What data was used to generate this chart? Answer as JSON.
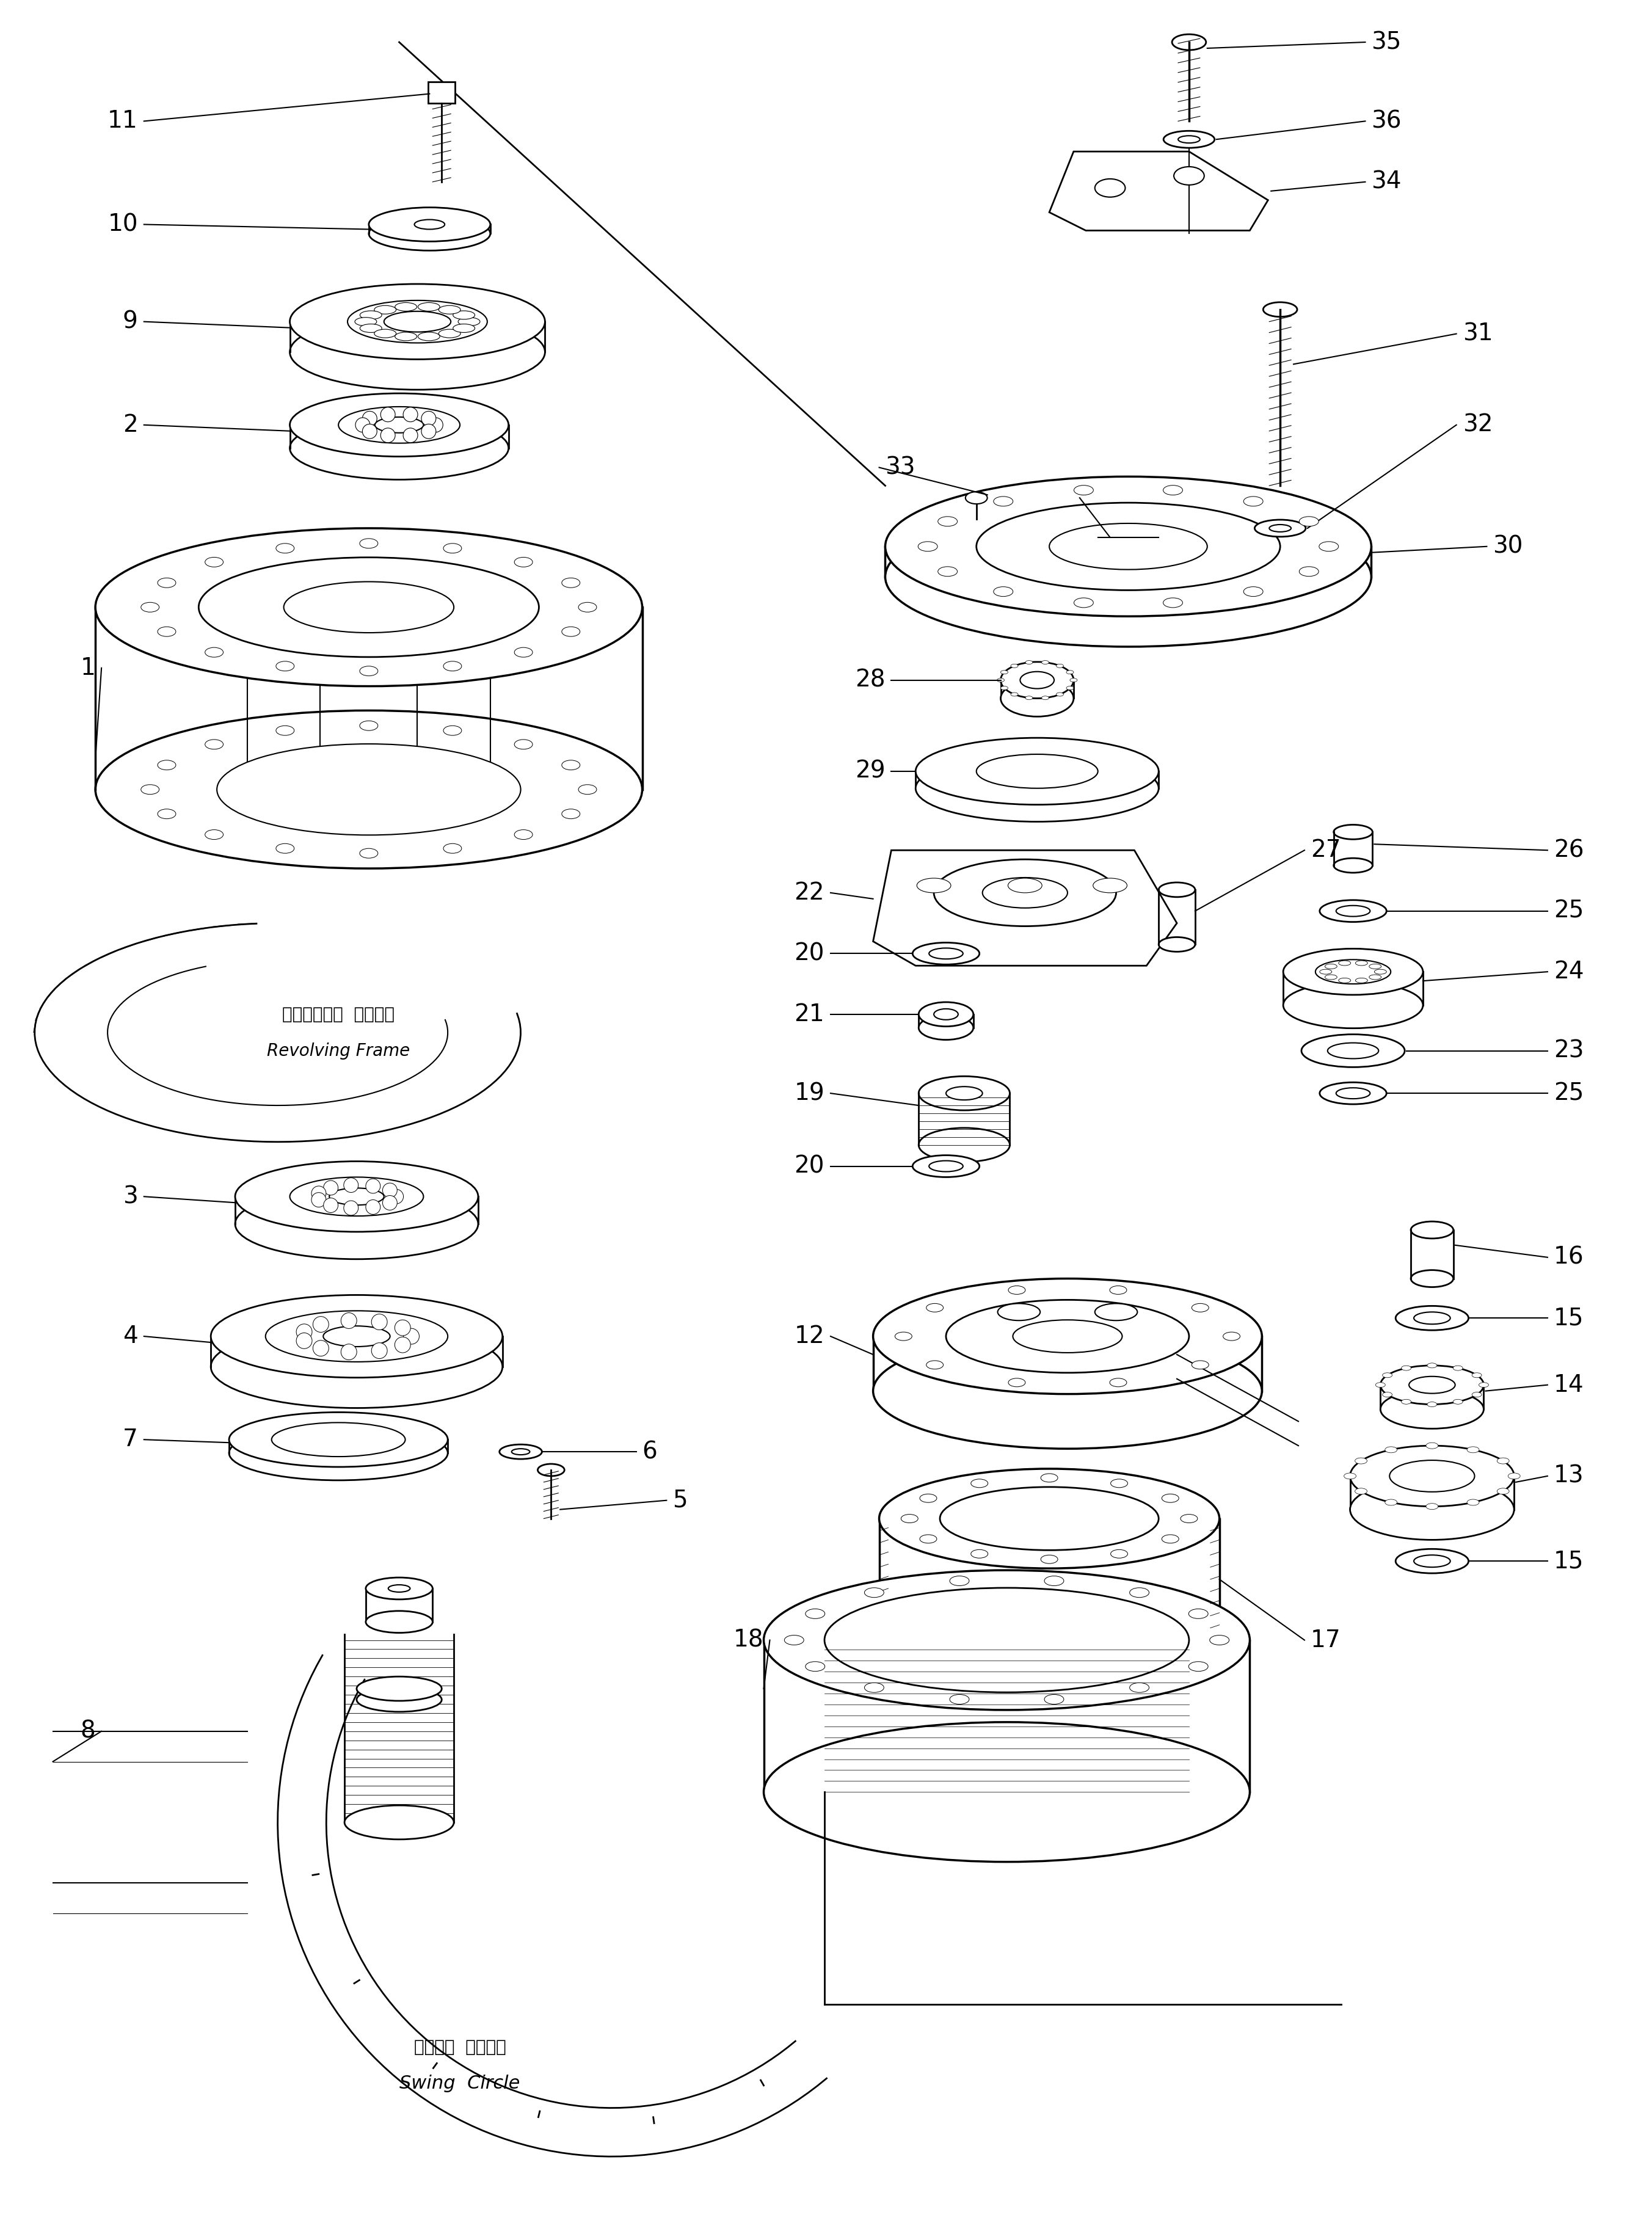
{
  "bg_color": "#ffffff",
  "line_color": "#000000",
  "fig_width": 27.05,
  "fig_height": 36.4,
  "revolving_frame_jp": "レボルビング  フレーム",
  "revolving_frame_en": "Revolving Frame",
  "swing_circle_jp": "スイング  サークル",
  "swing_circle_en": "Swing  Circle",
  "label_fs": 28,
  "text_fs": 20
}
